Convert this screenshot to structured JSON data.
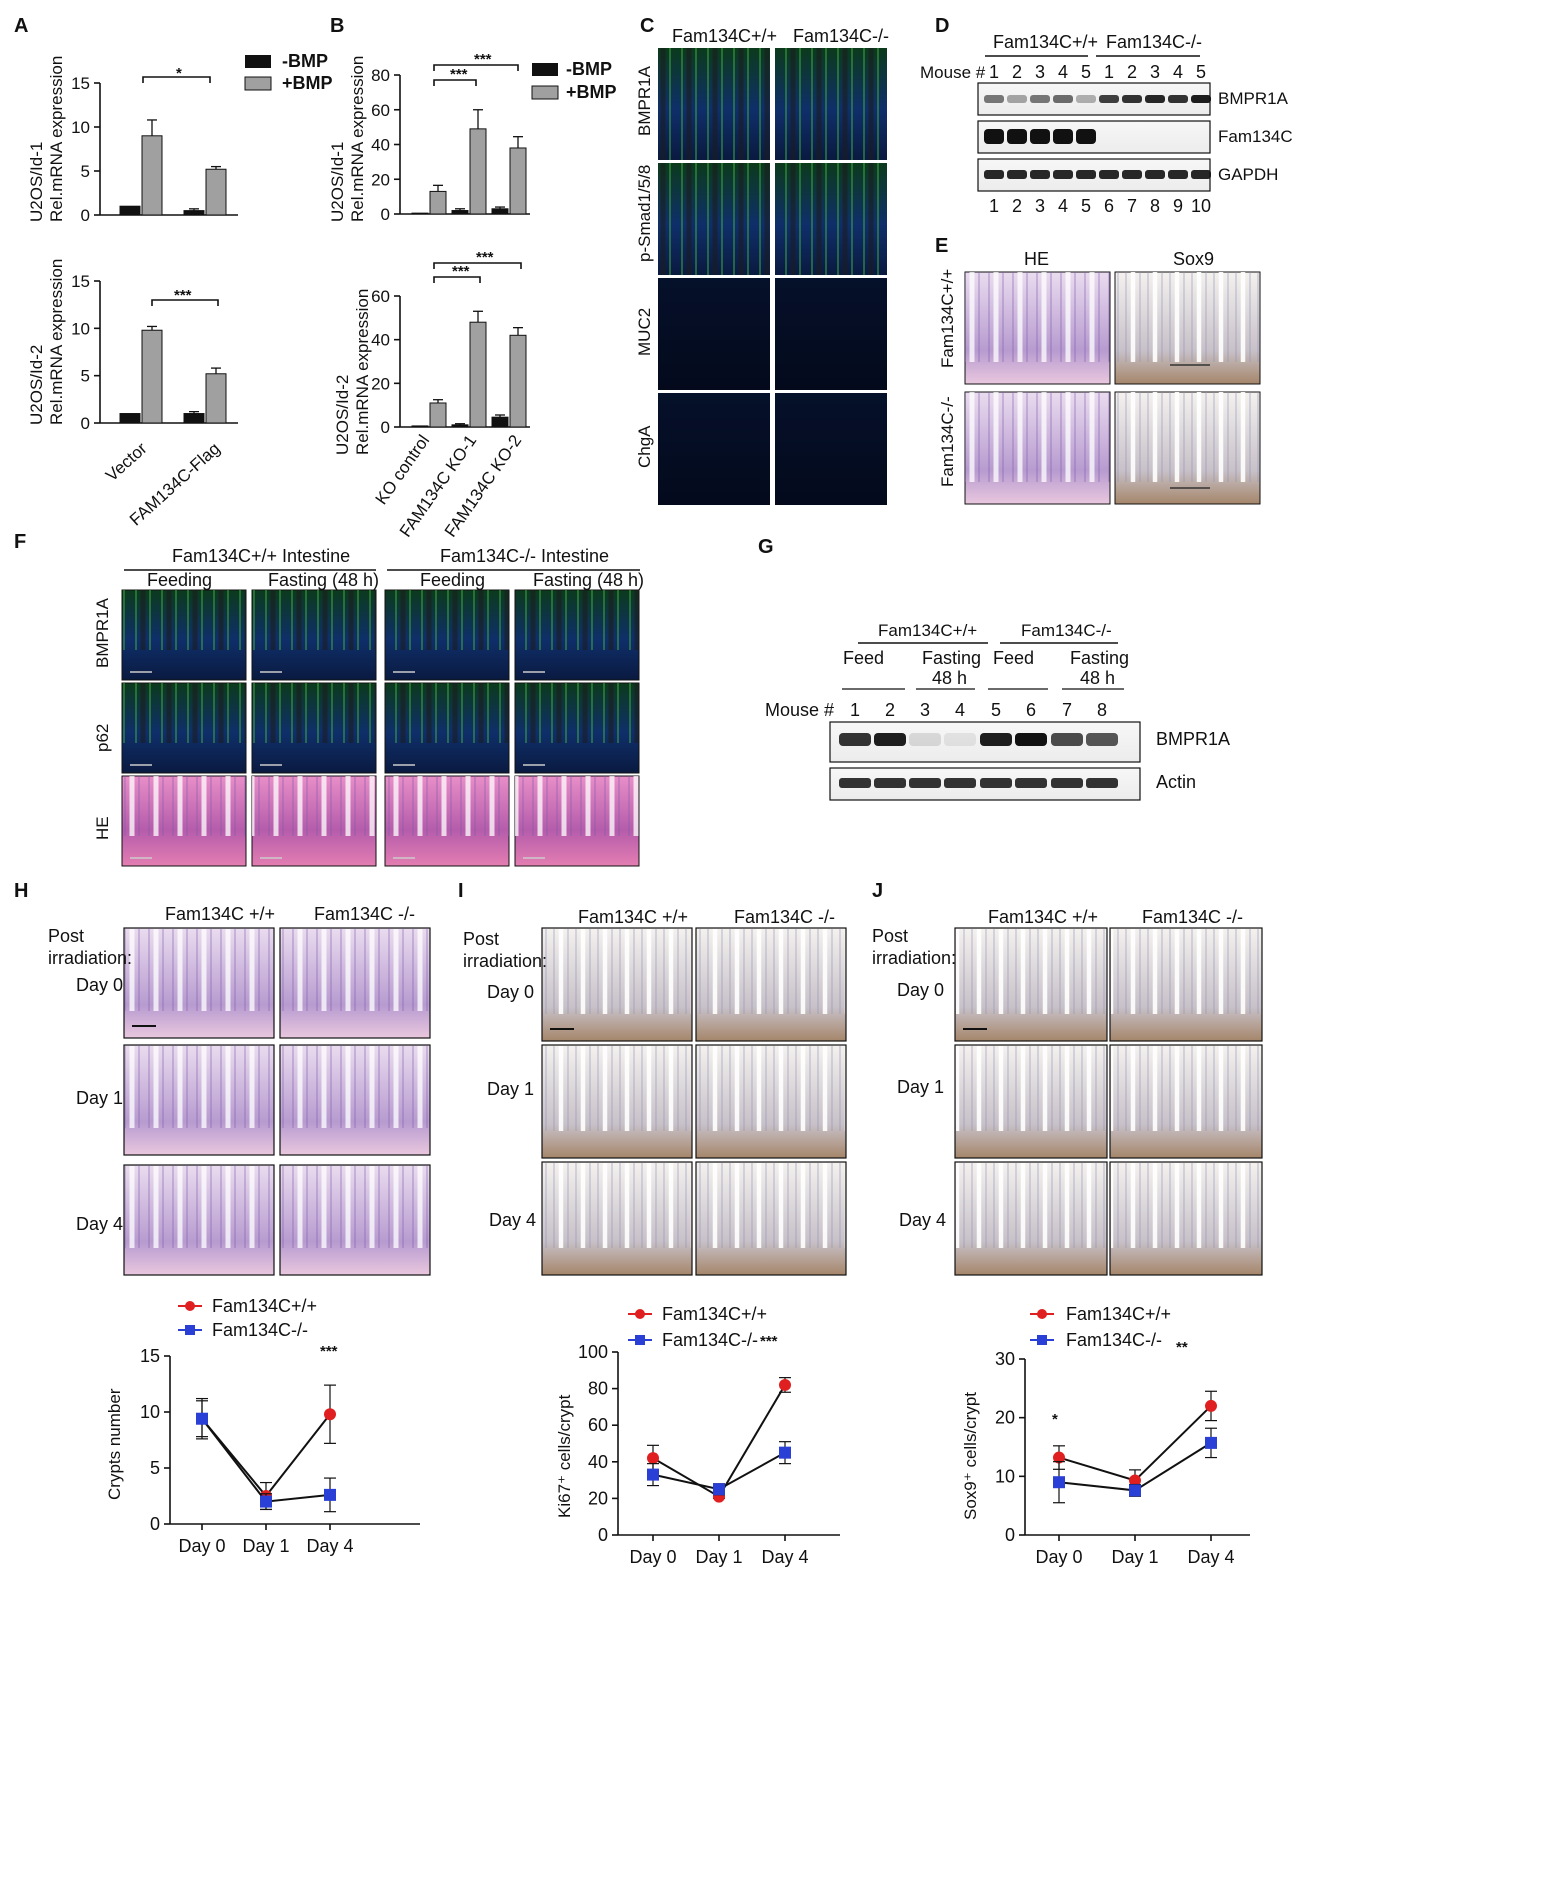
{
  "panels": {
    "A": {
      "label": "A"
    },
    "B": {
      "label": "B"
    },
    "C": {
      "label": "C"
    },
    "D": {
      "label": "D"
    },
    "E": {
      "label": "E"
    },
    "F": {
      "label": "F"
    },
    "G": {
      "label": "G"
    },
    "H": {
      "label": "H"
    },
    "I": {
      "label": "I"
    },
    "J": {
      "label": "J"
    }
  },
  "legend_bmp": {
    "minus": "-BMP",
    "plus": "+BMP"
  },
  "panelA": {
    "top_ylabel_line1": "U2OS/Id-1",
    "top_ylabel_line2": "Rel.mRNA expression",
    "bottom_ylabel_line1": "U2OS/Id-2",
    "bottom_ylabel_line2": "Rel.mRNA expression",
    "top_sig": "*",
    "bottom_sig": "***",
    "xcats": [
      "Vector",
      "FAM134C-Flag"
    ]
  },
  "panelB": {
    "top_ylabel_line1": "U2OS/Id-1",
    "top_ylabel_line2": "Rel.mRNA expression",
    "bottom_ylabel_line1": "U2OS/Id-2",
    "bottom_ylabel_line2": "Rel.mRNA expression",
    "sig1": "***",
    "sig2": "***",
    "sig3": "***",
    "sig4": "***",
    "xcats": [
      "KO control",
      "FAM134C KO-1",
      "FAM134C KO-2"
    ]
  },
  "panelC": {
    "col1": "Fam134C+/+",
    "col2": "Fam134C-/-",
    "rows": [
      "BMPR1A",
      "p-Smad1/5/8",
      "MUC2",
      "ChgA"
    ]
  },
  "panelD": {
    "group1": "Fam134C+/+",
    "group2": "Fam134C-/-",
    "mouse_label": "Mouse #",
    "mouse_nums": [
      "1",
      "2",
      "3",
      "4",
      "5",
      "1",
      "2",
      "3",
      "4",
      "5"
    ],
    "lane_nums": [
      "1",
      "2",
      "3",
      "4",
      "5",
      "6",
      "7",
      "8",
      "9",
      "10"
    ],
    "bands": [
      "BMPR1A",
      "Fam134C",
      "GAPDH"
    ]
  },
  "panelE": {
    "col1": "HE",
    "col2": "Sox9",
    "row1": "Fam134C+/+",
    "row2": "Fam134C-/-"
  },
  "panelF": {
    "group1": "Fam134C+/+ Intestine",
    "group2": "Fam134C-/- Intestine",
    "conds": [
      "Feeding",
      "Fasting (48 h)",
      "Feeding",
      "Fasting (48 h)"
    ],
    "rows": [
      "BMPR1A",
      "p62",
      "HE"
    ]
  },
  "panelG": {
    "group1": "Fam134C+/+",
    "group2": "Fam134C-/-",
    "feed1": "Feed",
    "fast1a": "Fasting",
    "fast1b": "48 h",
    "feed2": "Feed",
    "fast2a": "Fasting",
    "fast2b": "48 h",
    "mouse_label": "Mouse #",
    "mouse_nums": [
      "1",
      "2",
      "3",
      "4",
      "5",
      "6",
      "7",
      "8"
    ],
    "bands": [
      "BMPR1A",
      "Actin"
    ]
  },
  "panelH": {
    "col1": "Fam134C +/+",
    "col2": "Fam134C -/-",
    "post1": "Post",
    "post2": "irradiation:",
    "days": [
      "Day 0",
      "Day 1",
      "Day 4"
    ],
    "ylabel": "Crypts number",
    "sig": "***"
  },
  "panelI": {
    "col1": "Fam134C +/+",
    "col2": "Fam134C -/-",
    "post1": "Post",
    "post2": "irradiation:",
    "days": [
      "Day 0",
      "Day 1",
      "Day 4"
    ],
    "ylabel": "Ki67⁺ cells/crypt",
    "sig": "***"
  },
  "panelJ": {
    "col1": "Fam134C +/+",
    "col2": "Fam134C -/-",
    "post1": "Post",
    "post2": "irradiation:",
    "days": [
      "Day 0",
      "Day 1",
      "Day 4"
    ],
    "ylabel": "Sox9⁺ cells/crypt",
    "sig1": "*",
    "sig2": "**"
  },
  "legend_line": {
    "wt": "Fam134C+/+",
    "ko": "Fam134C-/-"
  },
  "colors": {
    "bar_minus": "#111111",
    "bar_plus": "#a0a0a0",
    "wt": "#e02020",
    "ko": "#2a3fd6"
  },
  "chart_data": [
    {
      "type": "bar",
      "title": "",
      "ylabel": "U2OS/Id-1 Rel.mRNA expression",
      "categories": [
        "Vector",
        "FAM134C-Flag"
      ],
      "ylim": [
        0,
        15
      ],
      "yticks": [
        0,
        5,
        10,
        15
      ],
      "series": [
        {
          "name": "-BMP",
          "values": [
            1.0,
            0.5
          ],
          "errors": [
            0,
            0.2
          ]
        },
        {
          "name": "+BMP",
          "values": [
            9.0,
            5.2
          ],
          "errors": [
            1.8,
            0.3
          ]
        }
      ]
    },
    {
      "type": "bar",
      "title": "",
      "ylabel": "U2OS/Id-2 Rel.mRNA expression",
      "categories": [
        "Vector",
        "FAM134C-Flag"
      ],
      "ylim": [
        0,
        15
      ],
      "yticks": [
        0,
        5,
        10,
        15
      ],
      "series": [
        {
          "name": "-BMP",
          "values": [
            1.0,
            1.0
          ],
          "errors": [
            0,
            0.2
          ]
        },
        {
          "name": "+BMP",
          "values": [
            9.8,
            5.2
          ],
          "errors": [
            0.4,
            0.6
          ]
        }
      ]
    },
    {
      "type": "bar",
      "title": "",
      "ylabel": "U2OS/Id-1 Rel.mRNA expression",
      "categories": [
        "KO control",
        "FAM134C KO-1",
        "FAM134C KO-2"
      ],
      "ylim": [
        0,
        80
      ],
      "yticks": [
        0,
        20,
        40,
        60,
        80
      ],
      "series": [
        {
          "name": "-BMP",
          "values": [
            0.5,
            2.0,
            3.0
          ],
          "errors": [
            0,
            1.0,
            1.0
          ]
        },
        {
          "name": "+BMP",
          "values": [
            13.0,
            49.0,
            38.0
          ],
          "errors": [
            3.5,
            11.0,
            6.5
          ]
        }
      ]
    },
    {
      "type": "bar",
      "title": "",
      "ylabel": "U2OS/Id-2 Rel.mRNA expression",
      "categories": [
        "KO control",
        "FAM134C KO-1",
        "FAM134C KO-2"
      ],
      "ylim": [
        0,
        60
      ],
      "yticks": [
        0,
        20,
        40,
        60
      ],
      "series": [
        {
          "name": "-BMP",
          "values": [
            0.5,
            1.0,
            4.5
          ],
          "errors": [
            0,
            0.5,
            1.0
          ]
        },
        {
          "name": "+BMP",
          "values": [
            11.0,
            48.0,
            42.0
          ],
          "errors": [
            1.5,
            5.0,
            3.5
          ]
        }
      ]
    },
    {
      "type": "line",
      "title": "",
      "ylabel": "Crypts number",
      "x": [
        "Day 0",
        "Day 1",
        "Day 4"
      ],
      "ylim": [
        0,
        15
      ],
      "yticks": [
        0,
        5,
        10,
        15
      ],
      "series": [
        {
          "name": "Fam134C+/+",
          "values": [
            9.4,
            2.5,
            9.8
          ],
          "errors": [
            1.8,
            1.2,
            2.6
          ]
        },
        {
          "name": "Fam134C-/-",
          "values": [
            9.4,
            2.0,
            2.6
          ],
          "errors": [
            1.6,
            0.7,
            1.5
          ]
        }
      ]
    },
    {
      "type": "line",
      "title": "",
      "ylabel": "Ki67⁺ cells/crypt",
      "x": [
        "Day 0",
        "Day 1",
        "Day 4"
      ],
      "ylim": [
        0,
        100
      ],
      "yticks": [
        0,
        20,
        40,
        60,
        80,
        100
      ],
      "series": [
        {
          "name": "Fam134C+/+",
          "values": [
            42,
            21,
            82
          ],
          "errors": [
            7,
            1,
            4
          ]
        },
        {
          "name": "Fam134C-/-",
          "values": [
            33,
            25,
            45
          ],
          "errors": [
            6,
            3,
            6
          ]
        }
      ]
    },
    {
      "type": "line",
      "title": "",
      "ylabel": "Sox9⁺ cells/crypt",
      "x": [
        "Day 0",
        "Day 1",
        "Day 4"
      ],
      "ylim": [
        0,
        30
      ],
      "yticks": [
        0,
        10,
        20,
        30
      ],
      "series": [
        {
          "name": "Fam134C+/+",
          "values": [
            13.2,
            9.3,
            22.0
          ],
          "errors": [
            2.0,
            1.8,
            2.5
          ]
        },
        {
          "name": "Fam134C-/-",
          "values": [
            9.0,
            7.6,
            15.7
          ],
          "errors": [
            3.5,
            1.0,
            2.5
          ]
        }
      ]
    }
  ]
}
